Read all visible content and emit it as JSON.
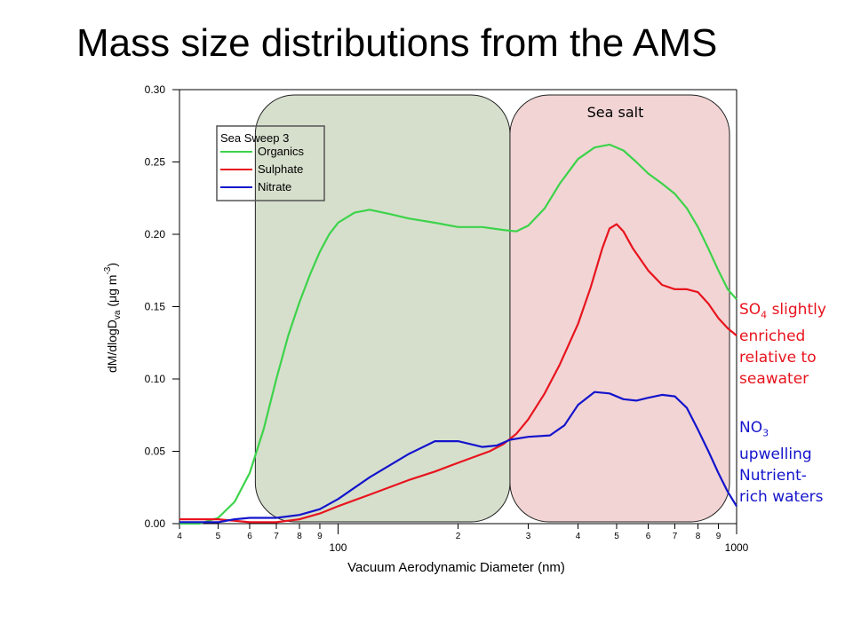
{
  "slide": {
    "title": "Mass size distributions from the AMS"
  },
  "chart_data": {
    "type": "line",
    "xlabel": "Vacuum Aerodynamic Diameter (nm)",
    "ylabel_parts": [
      "dM/dlogD",
      "va",
      " (μg m",
      "-3",
      ")"
    ],
    "xscale": "log",
    "xlim": [
      40,
      1000
    ],
    "ylim": [
      0,
      0.3
    ],
    "yticks": [
      0.0,
      0.05,
      0.1,
      0.15,
      0.2,
      0.25,
      0.3
    ],
    "ytick_labels": [
      "0.00",
      "0.05",
      "0.10",
      "0.15",
      "0.20",
      "0.25",
      "0.30"
    ],
    "xticks_major": [
      {
        "value": 100,
        "label": "100"
      },
      {
        "value": 1000,
        "label": "1000"
      }
    ],
    "xticks_minor": [
      {
        "value": 40,
        "label": "4"
      },
      {
        "value": 50,
        "label": "5"
      },
      {
        "value": 60,
        "label": "6"
      },
      {
        "value": 70,
        "label": "7"
      },
      {
        "value": 80,
        "label": "8"
      },
      {
        "value": 90,
        "label": "9"
      },
      {
        "value": 200,
        "label": "2"
      },
      {
        "value": 300,
        "label": "3"
      },
      {
        "value": 400,
        "label": "4"
      },
      {
        "value": 500,
        "label": "5"
      },
      {
        "value": 600,
        "label": "6"
      },
      {
        "value": 700,
        "label": "7"
      },
      {
        "value": 800,
        "label": "8"
      },
      {
        "value": 900,
        "label": "9"
      }
    ],
    "legend": {
      "title": "Sea Sweep 3",
      "placement": "top-left"
    },
    "series": [
      {
        "name": "Organics",
        "color": "#3cd34a",
        "points": [
          [
            40,
            0.0
          ],
          [
            45,
            0.0
          ],
          [
            50,
            0.004
          ],
          [
            55,
            0.015
          ],
          [
            60,
            0.035
          ],
          [
            65,
            0.065
          ],
          [
            70,
            0.1
          ],
          [
            75,
            0.13
          ],
          [
            80,
            0.153
          ],
          [
            85,
            0.172
          ],
          [
            90,
            0.188
          ],
          [
            95,
            0.2
          ],
          [
            100,
            0.208
          ],
          [
            110,
            0.215
          ],
          [
            120,
            0.217
          ],
          [
            135,
            0.214
          ],
          [
            150,
            0.211
          ],
          [
            175,
            0.208
          ],
          [
            200,
            0.205
          ],
          [
            230,
            0.205
          ],
          [
            260,
            0.203
          ],
          [
            280,
            0.202
          ],
          [
            300,
            0.206
          ],
          [
            330,
            0.218
          ],
          [
            360,
            0.235
          ],
          [
            400,
            0.252
          ],
          [
            440,
            0.26
          ],
          [
            480,
            0.262
          ],
          [
            520,
            0.258
          ],
          [
            560,
            0.25
          ],
          [
            600,
            0.242
          ],
          [
            650,
            0.235
          ],
          [
            700,
            0.228
          ],
          [
            750,
            0.218
          ],
          [
            800,
            0.205
          ],
          [
            850,
            0.19
          ],
          [
            900,
            0.175
          ],
          [
            950,
            0.162
          ],
          [
            1000,
            0.155
          ]
        ]
      },
      {
        "name": "Sulphate",
        "color": "#e8141e",
        "points": [
          [
            40,
            0.003
          ],
          [
            50,
            0.003
          ],
          [
            60,
            0.001
          ],
          [
            70,
            0.001
          ],
          [
            75,
            0.002
          ],
          [
            80,
            0.003
          ],
          [
            90,
            0.007
          ],
          [
            100,
            0.012
          ],
          [
            120,
            0.02
          ],
          [
            150,
            0.03
          ],
          [
            175,
            0.036
          ],
          [
            200,
            0.042
          ],
          [
            240,
            0.05
          ],
          [
            260,
            0.055
          ],
          [
            280,
            0.062
          ],
          [
            300,
            0.072
          ],
          [
            330,
            0.09
          ],
          [
            360,
            0.11
          ],
          [
            400,
            0.138
          ],
          [
            430,
            0.163
          ],
          [
            460,
            0.19
          ],
          [
            480,
            0.204
          ],
          [
            500,
            0.207
          ],
          [
            520,
            0.202
          ],
          [
            550,
            0.19
          ],
          [
            600,
            0.175
          ],
          [
            650,
            0.165
          ],
          [
            700,
            0.162
          ],
          [
            750,
            0.162
          ],
          [
            800,
            0.16
          ],
          [
            850,
            0.152
          ],
          [
            900,
            0.142
          ],
          [
            950,
            0.135
          ],
          [
            1000,
            0.13
          ]
        ]
      },
      {
        "name": "Nitrate",
        "color": "#1414cc",
        "points": [
          [
            40,
            0.001
          ],
          [
            50,
            0.001
          ],
          [
            55,
            0.003
          ],
          [
            60,
            0.004
          ],
          [
            70,
            0.004
          ],
          [
            80,
            0.006
          ],
          [
            90,
            0.01
          ],
          [
            100,
            0.017
          ],
          [
            120,
            0.032
          ],
          [
            150,
            0.048
          ],
          [
            175,
            0.057
          ],
          [
            200,
            0.057
          ],
          [
            230,
            0.053
          ],
          [
            250,
            0.054
          ],
          [
            270,
            0.058
          ],
          [
            300,
            0.06
          ],
          [
            340,
            0.061
          ],
          [
            370,
            0.068
          ],
          [
            400,
            0.082
          ],
          [
            440,
            0.091
          ],
          [
            480,
            0.09
          ],
          [
            520,
            0.086
          ],
          [
            560,
            0.085
          ],
          [
            600,
            0.087
          ],
          [
            650,
            0.089
          ],
          [
            700,
            0.088
          ],
          [
            750,
            0.08
          ],
          [
            800,
            0.065
          ],
          [
            850,
            0.05
          ],
          [
            900,
            0.035
          ],
          [
            950,
            0.022
          ],
          [
            1000,
            0.012
          ]
        ]
      }
    ],
    "regions": [
      {
        "name": "",
        "x_range": [
          62,
          270
        ],
        "fill": "#d6dfcc",
        "label": ""
      },
      {
        "name": "Sea salt",
        "x_range": [
          270,
          960
        ],
        "fill": "#f2d4d4",
        "label": "Sea salt"
      }
    ]
  },
  "annotations": {
    "sulphate": {
      "prefix": "SO",
      "sub": "4",
      "line1_rest": " slightly",
      "lines": [
        "enriched",
        "relative to",
        "seawater"
      ],
      "color": "#e8141e"
    },
    "nitrate": {
      "prefix": "NO",
      "sub": "3",
      "lines": [
        "upwelling",
        "Nutrient-",
        "rich waters"
      ],
      "color": "#1414cc"
    }
  }
}
